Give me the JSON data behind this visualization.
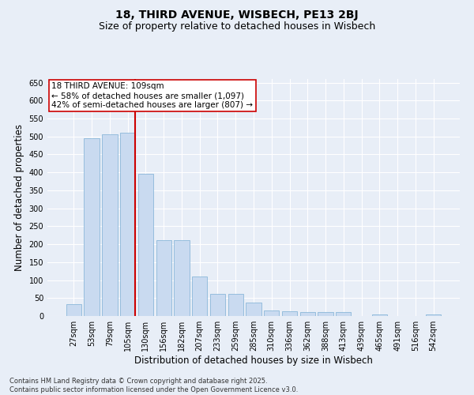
{
  "title1": "18, THIRD AVENUE, WISBECH, PE13 2BJ",
  "title2": "Size of property relative to detached houses in Wisbech",
  "xlabel": "Distribution of detached houses by size in Wisbech",
  "ylabel": "Number of detached properties",
  "categories": [
    "27sqm",
    "53sqm",
    "79sqm",
    "105sqm",
    "130sqm",
    "156sqm",
    "182sqm",
    "207sqm",
    "233sqm",
    "259sqm",
    "285sqm",
    "310sqm",
    "336sqm",
    "362sqm",
    "388sqm",
    "413sqm",
    "439sqm",
    "465sqm",
    "491sqm",
    "516sqm",
    "542sqm"
  ],
  "values": [
    32,
    496,
    506,
    510,
    396,
    212,
    212,
    110,
    62,
    62,
    38,
    16,
    13,
    10,
    10,
    10,
    1,
    5,
    1,
    1,
    5
  ],
  "bar_color": "#c9daf0",
  "bar_edge_color": "#7bafd4",
  "redline_index": 3,
  "redline_label": "18 THIRD AVENUE: 109sqm",
  "annotation_line2": "← 58% of detached houses are smaller (1,097)",
  "annotation_line3": "42% of semi-detached houses are larger (807) →",
  "annotation_box_color": "#ffffff",
  "annotation_box_edge": "#cc0000",
  "redline_color": "#cc0000",
  "ylim": [
    0,
    660
  ],
  "yticks": [
    0,
    50,
    100,
    150,
    200,
    250,
    300,
    350,
    400,
    450,
    500,
    550,
    600,
    650
  ],
  "footer1": "Contains HM Land Registry data © Crown copyright and database right 2025.",
  "footer2": "Contains public sector information licensed under the Open Government Licence v3.0.",
  "bg_color": "#e8eef7",
  "plot_bg_color": "#e8eef7",
  "title_fontsize": 10,
  "subtitle_fontsize": 9,
  "tick_fontsize": 7,
  "label_fontsize": 8.5,
  "footer_fontsize": 6,
  "annot_fontsize": 7.5
}
